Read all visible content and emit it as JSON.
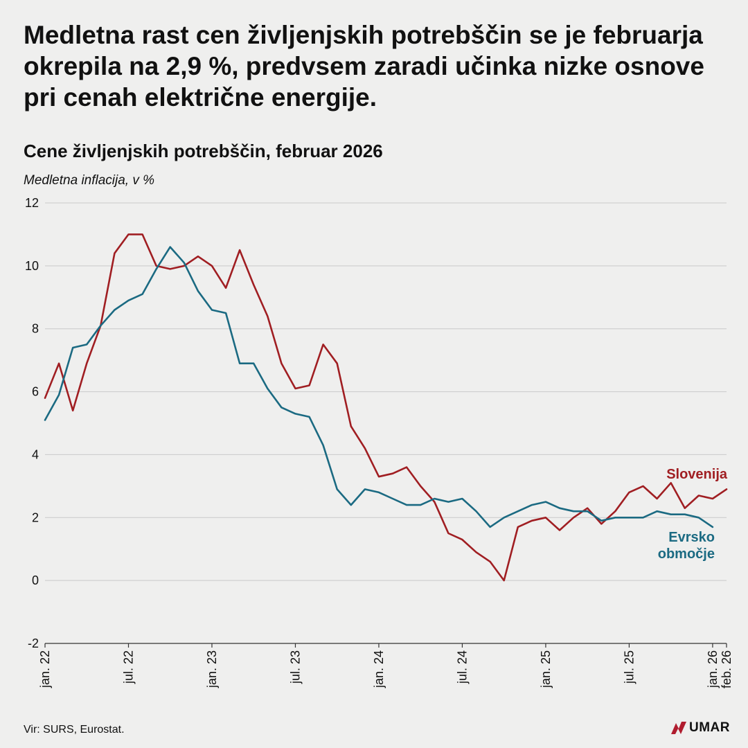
{
  "headline": "Medletna rast cen življenjskih potrebščin se je februarja okrepila na 2,9 %, predvsem zaradi učinka nizke osnove pri cenah električne energije.",
  "source": "Vir: SURS, Eurostat.",
  "logo": {
    "text": "UMAR",
    "icon": "umar-logo-icon",
    "color": "#b01c2e"
  },
  "chart_data": {
    "type": "line",
    "title": "Cene življenjskih potrebščin, februar 2026",
    "ylabel": "Medletna inflacija, v %",
    "xlabel": "",
    "ylim": [
      -2,
      12
    ],
    "yticks": [
      -2,
      0,
      2,
      4,
      6,
      8,
      10,
      12
    ],
    "grid": true,
    "x_tick_labels": [
      {
        "index": 0,
        "label": "jan. 22"
      },
      {
        "index": 6,
        "label": "jul. 22"
      },
      {
        "index": 12,
        "label": "jan. 23"
      },
      {
        "index": 18,
        "label": "jul. 23"
      },
      {
        "index": 24,
        "label": "jan. 24"
      },
      {
        "index": 30,
        "label": "jul. 24"
      },
      {
        "index": 36,
        "label": "jan. 25"
      },
      {
        "index": 42,
        "label": "jul. 25"
      },
      {
        "index": 48,
        "label": "jan. 26"
      },
      {
        "index": 49,
        "label": "feb. 26"
      }
    ],
    "series": [
      {
        "name": "Slovenija",
        "color": "#a01e22",
        "values": [
          5.8,
          6.9,
          5.4,
          6.9,
          8.1,
          10.4,
          11.0,
          11.0,
          10.0,
          9.9,
          10.0,
          10.3,
          10.0,
          9.3,
          10.5,
          9.4,
          8.4,
          6.9,
          6.1,
          6.2,
          7.5,
          6.9,
          4.9,
          4.2,
          3.3,
          3.4,
          3.6,
          3.0,
          2.5,
          1.5,
          1.3,
          0.9,
          0.6,
          0.0,
          1.7,
          1.9,
          2.0,
          1.6,
          2.0,
          2.3,
          1.8,
          2.2,
          2.8,
          3.0,
          2.6,
          3.1,
          2.3,
          2.7,
          2.6,
          2.9
        ]
      },
      {
        "name": "Evrsko območje",
        "color": "#1b6a82",
        "values": [
          5.1,
          5.9,
          7.4,
          7.5,
          8.1,
          8.6,
          8.9,
          9.1,
          9.9,
          10.6,
          10.1,
          9.2,
          8.6,
          8.5,
          6.9,
          6.9,
          6.1,
          5.5,
          5.3,
          5.2,
          4.3,
          2.9,
          2.4,
          2.9,
          2.8,
          2.6,
          2.4,
          2.4,
          2.6,
          2.5,
          2.6,
          2.2,
          1.7,
          2.0,
          2.2,
          2.4,
          2.5,
          2.3,
          2.2,
          2.2,
          1.9,
          2.0,
          2.0,
          2.0,
          2.2,
          2.1,
          2.1,
          2.0,
          1.7
        ]
      }
    ],
    "series_labels": [
      {
        "series": 0,
        "lines": [
          "Slovenija"
        ]
      },
      {
        "series": 1,
        "lines": [
          "Evrsko",
          "območje"
        ]
      }
    ]
  }
}
